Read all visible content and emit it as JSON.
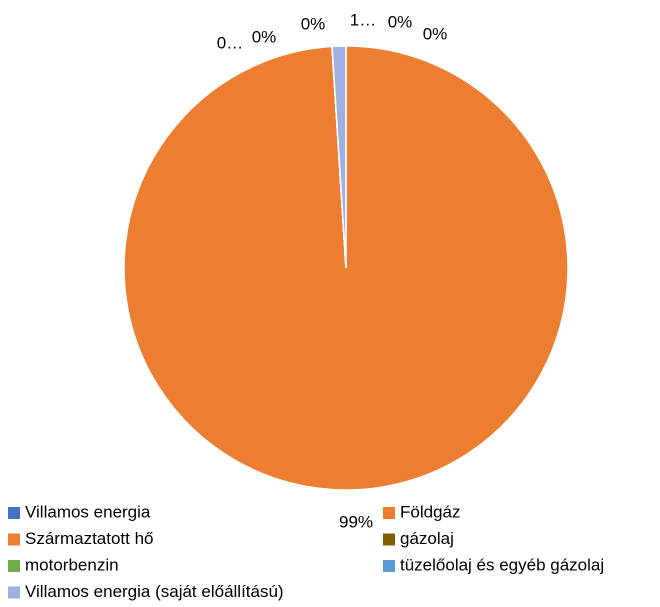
{
  "chart_data": {
    "type": "pie",
    "categories": [
      "Villamos energia",
      "Földgáz",
      "Származtatott hő",
      "gázolaj",
      "motorbenzin",
      "tüzelőolaj és egyéb gázolaj",
      "Villamos energia (saját előállítású)"
    ],
    "values": [
      0,
      99,
      0,
      0,
      0,
      0,
      1
    ],
    "value_labels": [
      "0%",
      "99%",
      "0…",
      "0%",
      "0%",
      "0%",
      "1…"
    ],
    "colors": [
      "#4472c4",
      "#ed7d31",
      "#ed7d31",
      "#7f6000",
      "#70ad47",
      "#5b9bd5",
      "#9fb0e2"
    ],
    "legend": "bottom"
  }
}
